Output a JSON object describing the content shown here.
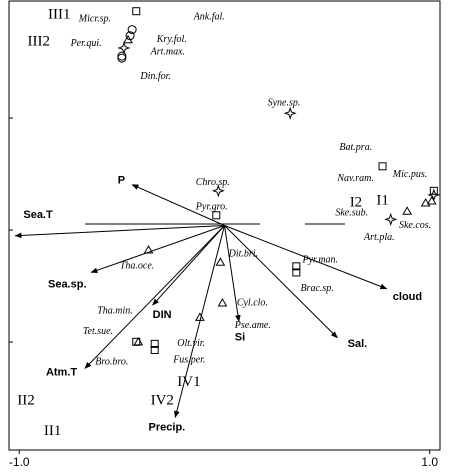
{
  "chart_data": {
    "type": "biplot",
    "xlim": [
      -1.05,
      1.05
    ],
    "ylim": [
      -1.1,
      1.1
    ],
    "xticks": [
      {
        "value": -1,
        "label": "-1.0"
      },
      {
        "value": 1,
        "label": "1.0"
      }
    ],
    "environment": {
      "color": "#000000",
      "names": [
        "Sea.T",
        "P",
        "Sea.sp.",
        "DIN",
        "Atm.T",
        "Precip.",
        "Si",
        "Sal.",
        "cloud"
      ],
      "x": [
        -1.02,
        -0.45,
        -0.65,
        -0.35,
        -0.68,
        -0.24,
        0.07,
        0.55,
        0.79
      ],
      "y": [
        -0.05,
        0.2,
        -0.23,
        -0.39,
        -0.7,
        -0.94,
        -0.47,
        -0.55,
        -0.31
      ],
      "label_x": [
        -0.98,
        -0.52,
        -0.86,
        -0.35,
        -0.87,
        -0.37,
        0.05,
        0.6,
        0.82
      ],
      "label_y": [
        0.05,
        0.22,
        -0.29,
        -0.44,
        -0.72,
        -0.99,
        -0.55,
        -0.58,
        -0.35
      ]
    },
    "series": [
      {
        "marker": "square",
        "color": "#000000",
        "x": [
          -0.43,
          -0.04,
          0.77,
          1.02,
          0.35,
          0.35,
          -0.43,
          -0.34,
          -0.34
        ],
        "y": [
          1.05,
          0.05,
          0.29,
          0.17,
          -0.2,
          -0.23,
          -0.57,
          -0.58,
          -0.61
        ]
      },
      {
        "marker": "circle",
        "color": "#000000",
        "x": [
          -0.45,
          -0.46,
          -0.5,
          -0.5
        ],
        "y": [
          0.96,
          0.93,
          0.82,
          0.83
        ]
      },
      {
        "marker": "triangle",
        "color": "#000000",
        "x": [
          -0.47,
          -0.37,
          -0.02,
          -0.01,
          -0.12,
          -0.42,
          0.89,
          1.01,
          0.98
        ],
        "y": [
          0.91,
          -0.12,
          -0.18,
          -0.38,
          -0.45,
          -0.57,
          0.07,
          0.12,
          0.11
        ]
      },
      {
        "marker": "star",
        "color": "#000000",
        "x": [
          -0.49,
          0.32,
          -0.03,
          0.81,
          1.02
        ],
        "y": [
          0.87,
          0.55,
          0.17,
          0.03,
          0.15
        ]
      }
    ],
    "species": {
      "names": [
        "Micr.sp.",
        "Ank.fal.",
        "Kry.fol.",
        "Per.qui.",
        "Art.max.",
        "Din.for.",
        "Syne.sp.",
        "Bat.pra.",
        "Chro.sp.",
        "Nav.ram.",
        "Mic.pus.",
        "Pyr.gro.",
        "Ske.sub.",
        "Ske.cos.",
        "Art.pla.",
        "Dit.bri.",
        "Tha.oce.",
        "Pyr.man.",
        "Brac.sp.",
        "Cyl.clo.",
        "Tha.min.",
        "Pse.ame.",
        "Tet.sue.",
        "Olt.vir.",
        "Bro.bro.",
        "Fus.per."
      ],
      "x": [
        -0.71,
        -0.15,
        -0.33,
        -0.75,
        -0.36,
        -0.41,
        0.21,
        0.56,
        -0.14,
        0.55,
        0.82,
        -0.14,
        0.54,
        0.85,
        0.68,
        0.02,
        -0.51,
        0.38,
        0.37,
        0.06,
        -0.62,
        0.05,
        -0.69,
        -0.23,
        -0.63,
        -0.25
      ],
      "y": [
        1.01,
        1.02,
        0.91,
        0.89,
        0.85,
        0.73,
        0.6,
        0.38,
        0.21,
        0.23,
        0.25,
        0.09,
        0.06,
        0,
        -0.06,
        -0.14,
        -0.2,
        -0.17,
        -0.31,
        -0.38,
        -0.42,
        -0.49,
        -0.52,
        -0.58,
        -0.67,
        -0.66
      ]
    },
    "groups": {
      "names": [
        "III1",
        "III2",
        "I1",
        "I2",
        "II2",
        "II1",
        "IV1",
        "IV2"
      ],
      "x": [
        -0.86,
        -0.96,
        0.74,
        0.61,
        -1.01,
        -0.88,
        -0.23,
        -0.36
      ],
      "y": [
        1.03,
        0.9,
        0.12,
        0.11,
        -0.86,
        -1.01,
        -0.77,
        -0.86
      ]
    }
  }
}
